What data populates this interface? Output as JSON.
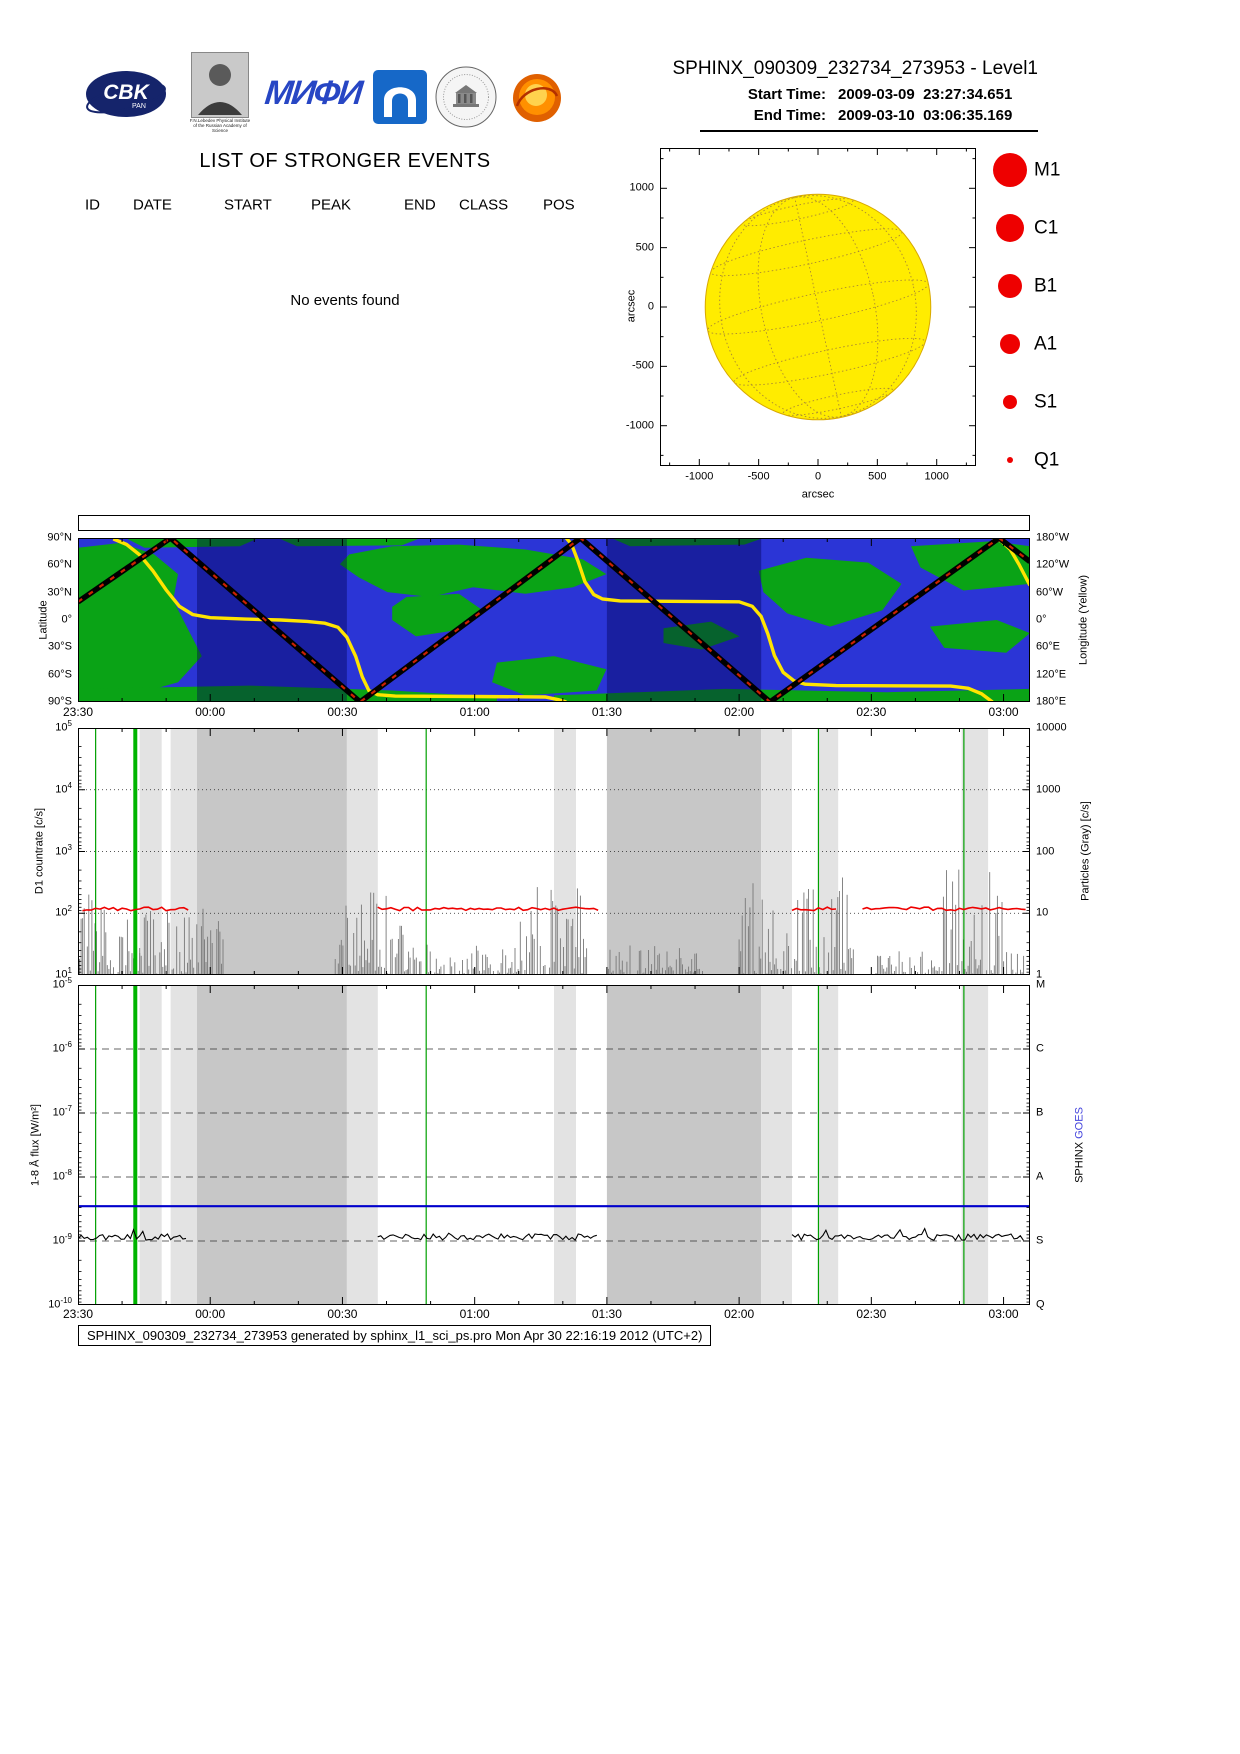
{
  "header": {
    "title": "SPHINX_090309_232734_273953 - Level1",
    "start_label": "Start Time:",
    "start_value": "2009-03-09  23:27:34.651",
    "end_label": "End Time:",
    "end_value": "2009-03-10  03:06:35.169",
    "logo_cbk_text": "CBK",
    "logo_cbk_sub": "PAN",
    "logo_lebedev_caption": "F.N.Lebedev Physical Institute of the Russian Academy of Science",
    "logo_mephi_text": "МИФИ"
  },
  "events": {
    "title": "LIST OF STRONGER EVENTS",
    "columns": [
      "ID",
      "DATE",
      "START",
      "PEAK",
      "END",
      "CLASS",
      "POS"
    ],
    "empty_message": "No events found"
  },
  "footer": {
    "text": "SPHINX_090309_232734_273953 generated by sphinx_l1_sci_ps.pro Mon Apr 30 22:16:19 2012 (UTC+2)"
  },
  "colors": {
    "ocean": "#2b35d6",
    "land": "#0aa316",
    "night": "rgba(0,0,80,0.40)",
    "yellow_line": "#ffe400",
    "track_dash": "#cc2200",
    "umbra": "#c7c7c7",
    "penumbra": "#e3e3e3",
    "spike": "#787878",
    "red_line": "#ee0000",
    "blue_line": "#0000cc",
    "goes_blue": "#4444dd",
    "legend_red": "#ee0000"
  },
  "timeline": {
    "t_min": 0,
    "t_max": 216,
    "tick_labels": [
      "23:30",
      "00:00",
      "00:30",
      "01:00",
      "01:30",
      "02:00",
      "02:30",
      "03:00"
    ],
    "tick_minutes": [
      0,
      30,
      60,
      90,
      120,
      150,
      180,
      210
    ],
    "minor_step": 10,
    "shade_bands": [
      {
        "t0": 14,
        "t1": 19,
        "type": "penumbra"
      },
      {
        "t0": 21,
        "t1": 27,
        "type": "penumbra"
      },
      {
        "t0": 27,
        "t1": 61,
        "type": "umbra"
      },
      {
        "t0": 61,
        "t1": 68,
        "type": "penumbra"
      },
      {
        "t0": 108,
        "t1": 113,
        "type": "penumbra"
      },
      {
        "t0": 120,
        "t1": 155,
        "type": "umbra"
      },
      {
        "t0": 155,
        "t1": 162,
        "type": "penumbra"
      },
      {
        "t0": 168,
        "t1": 172.5,
        "type": "penumbra"
      },
      {
        "t0": 200.5,
        "t1": 206.5,
        "type": "penumbra"
      }
    ],
    "green_lines": [
      {
        "t": 4,
        "thick": false
      },
      {
        "t": 13,
        "thick": true
      },
      {
        "t": 79,
        "thick": false
      },
      {
        "t": 168,
        "thick": false
      },
      {
        "t": 201,
        "thick": false
      }
    ]
  },
  "chart_data": [
    {
      "id": "solar_disk",
      "type": "scatter",
      "title": "",
      "xlabel": "arcsec",
      "ylabel": "arcsec",
      "xlim": [
        -1340,
        1340
      ],
      "ylim": [
        -1345,
        1345
      ],
      "xticks": [
        -1000,
        -500,
        0,
        500,
        1000
      ],
      "yticks": [
        1000,
        500,
        0,
        -500,
        -1000
      ],
      "disk_radius_arcsec": 950,
      "disk_color": "#ffec00",
      "grid_lat_deg": [
        -60,
        -30,
        0,
        30,
        60
      ],
      "grid_lon_deg": [
        0,
        30,
        60
      ],
      "points": [],
      "no_events_plotted": true,
      "legend": [
        {
          "label": "M1",
          "radius_px": 17
        },
        {
          "label": "C1",
          "radius_px": 14
        },
        {
          "label": "B1",
          "radius_px": 12
        },
        {
          "label": "A1",
          "radius_px": 10
        },
        {
          "label": "S1",
          "radius_px": 7
        },
        {
          "label": "Q1",
          "radius_px": 3
        }
      ]
    },
    {
      "id": "ground_track",
      "type": "line",
      "y_left": {
        "label": "Latitude",
        "tick_labels": [
          "90°N",
          "60°N",
          "30°N",
          "0°",
          "30°S",
          "60°S",
          "90°S"
        ],
        "lim": [
          90,
          -90
        ]
      },
      "y_right": {
        "label": "Longitude (Yellow)",
        "tick_labels": [
          "180°W",
          "120°W",
          "60°W",
          "0°",
          "60°E",
          "120°E",
          "180°E"
        ],
        "lim": [
          180,
          -180
        ]
      },
      "x_tick_labels": [
        "23:30",
        "00:00",
        "00:30",
        "01:00",
        "01:30",
        "02:00",
        "02:30",
        "03:00"
      ],
      "track_t": [
        0,
        21,
        64,
        114,
        157,
        209,
        216
      ],
      "track_lat": [
        20,
        90,
        -90,
        90,
        -90,
        90,
        64
      ],
      "longitude_segments": [
        [
          [
            8,
            178
          ],
          [
            11,
            166
          ],
          [
            14,
            143
          ],
          [
            17,
            108
          ],
          [
            20,
            66
          ],
          [
            23,
            30
          ],
          [
            26,
            12
          ],
          [
            30,
            5
          ],
          [
            38,
            2
          ],
          [
            46,
            0
          ],
          [
            52,
            -3
          ],
          [
            56,
            -7
          ],
          [
            59,
            -16
          ],
          [
            61,
            -38
          ],
          [
            63,
            -80
          ],
          [
            64.5,
            -125
          ],
          [
            66,
            -155
          ],
          [
            68,
            -164
          ],
          [
            72,
            -167
          ],
          [
            90,
            -168
          ],
          [
            106,
            -169
          ],
          [
            109,
            -175
          ],
          [
            110.8,
            -180
          ]
        ],
        [
          [
            110.8,
            180
          ],
          [
            112,
            166
          ],
          [
            113.5,
            128
          ],
          [
            115,
            84
          ],
          [
            117,
            56
          ],
          [
            119,
            46
          ],
          [
            123,
            42
          ],
          [
            150,
            40
          ],
          [
            153,
            30
          ],
          [
            155,
            8
          ],
          [
            156.5,
            -30
          ],
          [
            158,
            -78
          ],
          [
            160,
            -115
          ],
          [
            162.5,
            -134
          ],
          [
            165,
            -141
          ],
          [
            172,
            -144
          ],
          [
            198,
            -145
          ],
          [
            202,
            -150
          ],
          [
            205,
            -162
          ],
          [
            207.5,
            -180
          ]
        ],
        [
          [
            207.5,
            180
          ],
          [
            209.5,
            173
          ],
          [
            211.5,
            155
          ],
          [
            213.5,
            122
          ],
          [
            215.5,
            85
          ],
          [
            216,
            76
          ]
        ]
      ],
      "night_bands": [
        [
          27,
          61
        ],
        [
          120,
          155
        ]
      ],
      "continents": [
        [
          [
            0,
            0.06
          ],
          [
            0.045,
            0.03
          ],
          [
            0.08,
            0.1
          ],
          [
            0.105,
            0.22
          ],
          [
            0.1,
            0.38
          ],
          [
            0.115,
            0.55
          ],
          [
            0.13,
            0.72
          ],
          [
            0.105,
            0.88
          ],
          [
            0.05,
            0.97
          ],
          [
            0,
            0.97
          ]
        ],
        [
          [
            0.05,
            0
          ],
          [
            0.19,
            0
          ],
          [
            0.17,
            0.05
          ],
          [
            0.07,
            0.06
          ]
        ],
        [
          [
            0.21,
            0
          ],
          [
            0.36,
            0
          ],
          [
            0.34,
            0.045
          ],
          [
            0.23,
            0.05
          ]
        ],
        [
          [
            0.285,
            0.1
          ],
          [
            0.33,
            0.05
          ],
          [
            0.4,
            0.04
          ],
          [
            0.47,
            0.07
          ],
          [
            0.53,
            0.13
          ],
          [
            0.555,
            0.22
          ],
          [
            0.52,
            0.3
          ],
          [
            0.47,
            0.34
          ],
          [
            0.415,
            0.3
          ],
          [
            0.37,
            0.36
          ],
          [
            0.325,
            0.33
          ],
          [
            0.295,
            0.24
          ],
          [
            0.275,
            0.16
          ]
        ],
        [
          [
            0.345,
            0.36
          ],
          [
            0.4,
            0.34
          ],
          [
            0.425,
            0.44
          ],
          [
            0.4,
            0.56
          ],
          [
            0.355,
            0.6
          ],
          [
            0.33,
            0.5
          ],
          [
            0.33,
            0.42
          ]
        ],
        [
          [
            0.44,
            0.76
          ],
          [
            0.5,
            0.72
          ],
          [
            0.555,
            0.8
          ],
          [
            0.545,
            0.93
          ],
          [
            0.47,
            0.96
          ],
          [
            0.435,
            0.88
          ]
        ],
        [
          [
            0,
            0.92
          ],
          [
            0.18,
            0.9
          ],
          [
            0.33,
            0.93
          ],
          [
            0.44,
            0.97
          ],
          [
            0.44,
            1
          ],
          [
            0,
            1
          ]
        ],
        [
          [
            0.5,
            0.96
          ],
          [
            0.68,
            0.92
          ],
          [
            0.85,
            0.94
          ],
          [
            1,
            0.92
          ],
          [
            1,
            1
          ],
          [
            0.5,
            1
          ]
        ],
        [
          [
            0.715,
            0.2
          ],
          [
            0.765,
            0.12
          ],
          [
            0.83,
            0.15
          ],
          [
            0.865,
            0.28
          ],
          [
            0.845,
            0.44
          ],
          [
            0.79,
            0.54
          ],
          [
            0.745,
            0.46
          ],
          [
            0.72,
            0.33
          ]
        ],
        [
          [
            0.875,
            0.05
          ],
          [
            0.96,
            0.02
          ],
          [
            1,
            0.05
          ],
          [
            1,
            0.28
          ],
          [
            0.93,
            0.32
          ],
          [
            0.885,
            0.18
          ]
        ],
        [
          [
            0.895,
            0.54
          ],
          [
            0.965,
            0.5
          ],
          [
            1,
            0.58
          ],
          [
            0.975,
            0.7
          ],
          [
            0.91,
            0.67
          ]
        ],
        [
          [
            0.615,
            0.55
          ],
          [
            0.665,
            0.51
          ],
          [
            0.695,
            0.6
          ],
          [
            0.655,
            0.68
          ],
          [
            0.615,
            0.64
          ]
        ],
        [
          [
            0.56,
            0
          ],
          [
            0.72,
            0
          ],
          [
            0.7,
            0.04
          ],
          [
            0.58,
            0.05
          ]
        ]
      ]
    },
    {
      "id": "countrate",
      "type": "line",
      "y_left": {
        "label": "D1 countrate [c/s]",
        "exp_range": [
          1,
          5
        ],
        "tick_exponents": [
          5,
          4,
          3,
          2,
          1
        ]
      },
      "y_right": {
        "label": "Particles (Gray) [c/s]",
        "exp_range": [
          0,
          4
        ],
        "tick_labels": [
          "10000",
          "1000",
          "100",
          "10",
          "1"
        ]
      },
      "red_level_exp": 2.07,
      "red_noise_exp": 0.03,
      "red_segments": [
        [
          1,
          25
        ],
        [
          68,
          118
        ],
        [
          162,
          172
        ],
        [
          178,
          215
        ]
      ],
      "particle_clusters": [
        [
          0,
          14,
          2.35
        ],
        [
          14,
          33,
          2.1
        ],
        [
          58,
          75,
          2.5
        ],
        [
          75,
          100,
          1.5
        ],
        [
          100,
          116,
          2.55
        ],
        [
          120,
          142,
          1.6
        ],
        [
          150,
          176,
          2.65
        ],
        [
          180,
          196,
          1.4
        ],
        [
          196,
          210,
          2.85
        ],
        [
          210,
          216,
          1.5
        ]
      ]
    },
    {
      "id": "flux",
      "type": "line",
      "y_left": {
        "label": "1-8 Å flux [W/m²]",
        "exp_range": [
          -10,
          -5
        ],
        "tick_exponents": [
          -5,
          -6,
          -7,
          -8,
          -9,
          -10
        ]
      },
      "y_right": {
        "label_sphinx": "SPHINX",
        "label_goes": "GOES",
        "class_labels": [
          "M",
          "C",
          "B",
          "A",
          "S",
          "Q"
        ]
      },
      "blue_threshold_wm2": 3.5e-09,
      "black_level_exp": -8.94,
      "black_noise_exp": 0.05,
      "black_segments": [
        [
          0,
          25
        ],
        [
          68,
          118
        ],
        [
          162,
          215
        ]
      ]
    }
  ]
}
